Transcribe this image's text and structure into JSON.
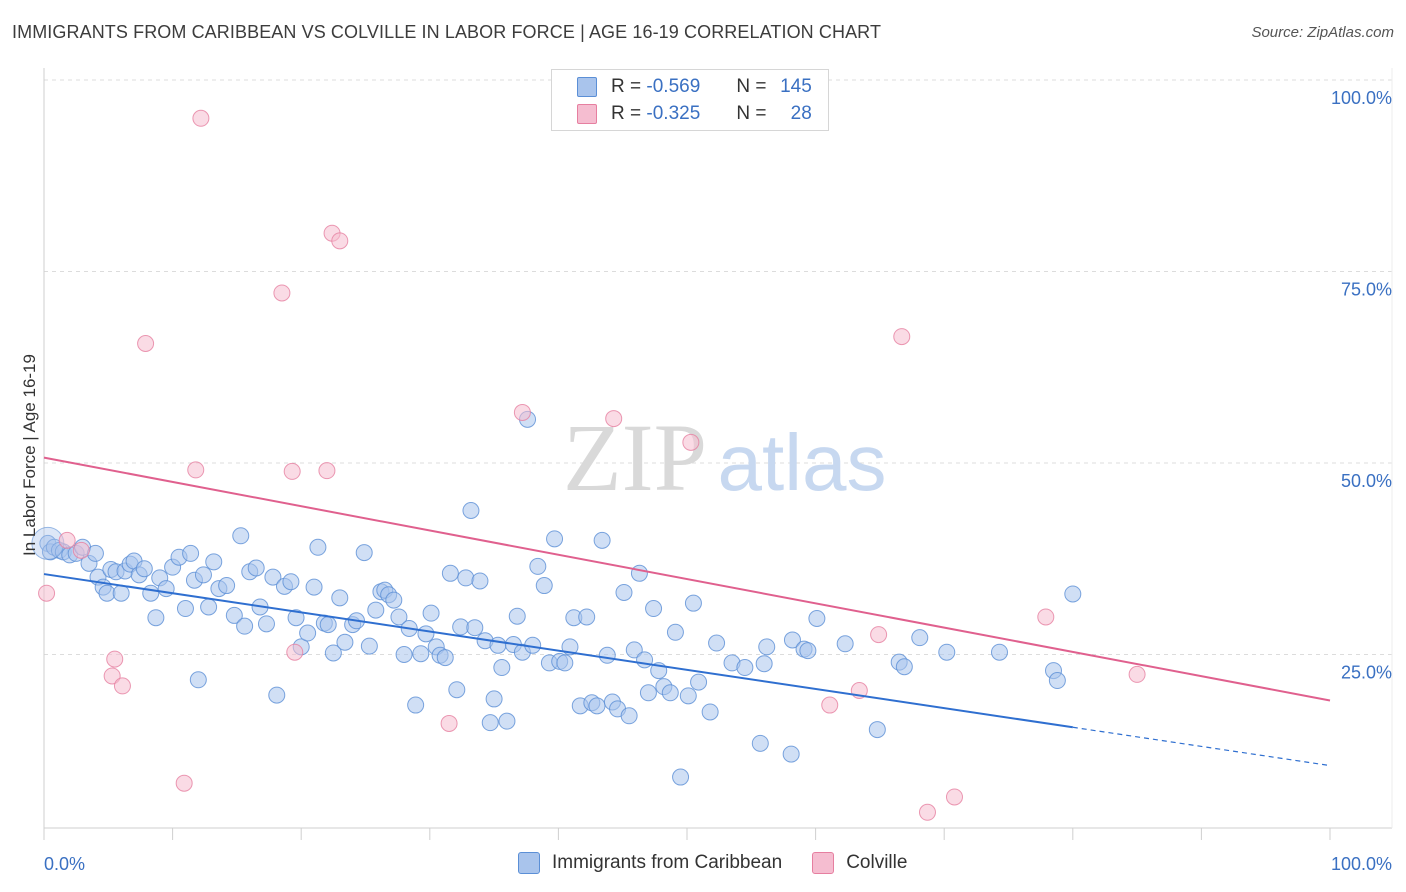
{
  "header": {
    "title": "IMMIGRANTS FROM CARIBBEAN VS COLVILLE IN LABOR FORCE | AGE 16-19 CORRELATION CHART",
    "source": "Source: ZipAtlas.com"
  },
  "legend": {
    "rows": [
      {
        "r_label": "R =",
        "r_value": "-0.569",
        "n_label": "N =",
        "n_value": "145"
      },
      {
        "r_label": "R =",
        "r_value": "-0.325",
        "n_label": "N =",
        "n_value": "28"
      }
    ]
  },
  "bottom_legend": {
    "series1": "Immigrants from Caribbean",
    "series2": "Colville"
  },
  "colors": {
    "blue_fill": "#a9c4ec",
    "blue_stroke": "#5b8fd6",
    "blue_line": "#2f6fd0",
    "pink_fill": "#f5bdd0",
    "pink_stroke": "#e67fa0",
    "pink_line": "#e0608e",
    "tick_text": "#3a70c2"
  },
  "chart_data": {
    "type": "scatter",
    "title": "IMMIGRANTS FROM CARIBBEAN VS COLVILLE IN LABOR FORCE | AGE 16-19 CORRELATION CHART",
    "xlabel": "",
    "ylabel": "In Labor Force | Age 16-19",
    "xlim": [
      0,
      100
    ],
    "ylim": [
      0,
      100
    ],
    "x_tick_labels": [
      "0.0%",
      "100.0%"
    ],
    "y_ticks": [
      25,
      50,
      75,
      100
    ],
    "y_tick_labels": [
      "25.0%",
      "50.0%",
      "75.0%",
      "100.0%"
    ],
    "watermark": {
      "zip": "ZIP",
      "atlas": "atlas"
    },
    "series": [
      {
        "name": "Immigrants from Caribbean",
        "R": -0.569,
        "N": 145,
        "trend": {
          "x0": 0,
          "y0": 35.5,
          "x1": 100,
          "y1": 10.5,
          "solid_until_x": 80
        },
        "points": [
          [
            0.3,
            39.5
          ],
          [
            0.5,
            38.4
          ],
          [
            0.8,
            39
          ],
          [
            1.2,
            38.6
          ],
          [
            1.5,
            38.4
          ],
          [
            2,
            38
          ],
          [
            2.5,
            38.2
          ],
          [
            3,
            39
          ],
          [
            3.5,
            36.9
          ],
          [
            4,
            38.2
          ],
          [
            4.2,
            35.1
          ],
          [
            4.6,
            33.8
          ],
          [
            4.9,
            33
          ],
          [
            5.2,
            36.1
          ],
          [
            5.6,
            35.8
          ],
          [
            6,
            33
          ],
          [
            6.3,
            35.9
          ],
          [
            6.7,
            36.8
          ],
          [
            7,
            37.2
          ],
          [
            7.4,
            35.4
          ],
          [
            7.8,
            36.2
          ],
          [
            8.3,
            33
          ],
          [
            8.7,
            29.8
          ],
          [
            9,
            35
          ],
          [
            9.5,
            33.6
          ],
          [
            10,
            36.4
          ],
          [
            10.5,
            37.7
          ],
          [
            11,
            31
          ],
          [
            11.4,
            38.2
          ],
          [
            11.7,
            34.7
          ],
          [
            12,
            21.7
          ],
          [
            12.4,
            35.4
          ],
          [
            12.8,
            31.2
          ],
          [
            13.2,
            37.1
          ],
          [
            13.6,
            33.6
          ],
          [
            14.2,
            34
          ],
          [
            14.8,
            30.1
          ],
          [
            15.3,
            40.5
          ],
          [
            15.6,
            28.7
          ],
          [
            16,
            35.8
          ],
          [
            16.5,
            36.3
          ],
          [
            16.8,
            31.2
          ],
          [
            17.3,
            29
          ],
          [
            17.8,
            35.1
          ],
          [
            18.1,
            19.7
          ],
          [
            18.7,
            33.9
          ],
          [
            19.2,
            34.5
          ],
          [
            19.6,
            29.8
          ],
          [
            20,
            26
          ],
          [
            20.5,
            27.8
          ],
          [
            21,
            33.8
          ],
          [
            21.3,
            39
          ],
          [
            21.8,
            29.1
          ],
          [
            22.1,
            28.9
          ],
          [
            22.5,
            25.2
          ],
          [
            23,
            32.4
          ],
          [
            23.4,
            26.6
          ],
          [
            24,
            28.9
          ],
          [
            24.3,
            29.4
          ],
          [
            24.9,
            38.3
          ],
          [
            25.3,
            26.1
          ],
          [
            25.8,
            30.8
          ],
          [
            26.2,
            33.2
          ],
          [
            26.5,
            33.4
          ],
          [
            26.8,
            32.8
          ],
          [
            27.2,
            32.1
          ],
          [
            27.6,
            29.9
          ],
          [
            28,
            25
          ],
          [
            28.4,
            28.4
          ],
          [
            28.9,
            18.4
          ],
          [
            29.3,
            25.1
          ],
          [
            29.7,
            27.7
          ],
          [
            30.1,
            30.4
          ],
          [
            30.5,
            26
          ],
          [
            30.8,
            24.9
          ],
          [
            31.2,
            24.6
          ],
          [
            31.6,
            35.6
          ],
          [
            32.1,
            20.4
          ],
          [
            32.4,
            28.6
          ],
          [
            32.8,
            35
          ],
          [
            33.2,
            43.8
          ],
          [
            33.5,
            28.5
          ],
          [
            33.9,
            34.6
          ],
          [
            34.3,
            26.8
          ],
          [
            34.7,
            16.1
          ],
          [
            35,
            19.2
          ],
          [
            35.3,
            26.2
          ],
          [
            35.6,
            23.3
          ],
          [
            36,
            16.3
          ],
          [
            36.5,
            26.3
          ],
          [
            36.8,
            30
          ],
          [
            37.2,
            25.3
          ],
          [
            37.6,
            55.7
          ],
          [
            38,
            26.2
          ],
          [
            38.4,
            36.5
          ],
          [
            38.9,
            34
          ],
          [
            39.3,
            23.9
          ],
          [
            39.7,
            40.1
          ],
          [
            40.1,
            24.1
          ],
          [
            40.5,
            23.9
          ],
          [
            40.9,
            26
          ],
          [
            41.2,
            29.8
          ],
          [
            41.7,
            18.3
          ],
          [
            42.2,
            29.9
          ],
          [
            42.6,
            18.7
          ],
          [
            43,
            18.3
          ],
          [
            43.4,
            39.9
          ],
          [
            43.8,
            24.9
          ],
          [
            44.2,
            18.8
          ],
          [
            44.6,
            17.9
          ],
          [
            45.1,
            33.1
          ],
          [
            45.5,
            17
          ],
          [
            45.9,
            25.6
          ],
          [
            46.3,
            35.6
          ],
          [
            46.7,
            24.3
          ],
          [
            47,
            20
          ],
          [
            47.4,
            31
          ],
          [
            47.8,
            22.9
          ],
          [
            48.2,
            20.8
          ],
          [
            48.7,
            20
          ],
          [
            49.1,
            27.9
          ],
          [
            49.5,
            9
          ],
          [
            50.1,
            19.6
          ],
          [
            50.5,
            31.7
          ],
          [
            50.9,
            21.4
          ],
          [
            51.8,
            17.5
          ],
          [
            52.3,
            26.5
          ],
          [
            53.5,
            23.9
          ],
          [
            54.5,
            23.3
          ],
          [
            55.7,
            13.4
          ],
          [
            56,
            23.8
          ],
          [
            56.2,
            26
          ],
          [
            58.1,
            12
          ],
          [
            58.2,
            26.9
          ],
          [
            59.1,
            25.7
          ],
          [
            59.4,
            25.5
          ],
          [
            60.1,
            29.7
          ],
          [
            62.3,
            26.4
          ],
          [
            64.8,
            15.2
          ],
          [
            66.5,
            24
          ],
          [
            66.9,
            23.4
          ],
          [
            68.1,
            27.2
          ],
          [
            70.2,
            25.3
          ],
          [
            74.3,
            25.3
          ],
          [
            78.5,
            22.9
          ],
          [
            78.8,
            21.6
          ],
          [
            80,
            32.9
          ]
        ]
      },
      {
        "name": "Colville",
        "R": -0.325,
        "N": 28,
        "trend": {
          "x0": 0,
          "y0": 50.7,
          "x1": 100,
          "y1": 19
        },
        "points": [
          [
            0.2,
            33
          ],
          [
            1.8,
            39.9
          ],
          [
            2.9,
            38.6
          ],
          [
            5.5,
            24.4
          ],
          [
            5.3,
            22.2
          ],
          [
            6.1,
            20.9
          ],
          [
            7.9,
            65.6
          ],
          [
            10.9,
            8.2
          ],
          [
            11.8,
            49.1
          ],
          [
            12.2,
            95
          ],
          [
            18.5,
            72.2
          ],
          [
            19.3,
            48.9
          ],
          [
            19.5,
            25.3
          ],
          [
            22,
            49
          ],
          [
            22.4,
            80
          ],
          [
            23,
            79
          ],
          [
            31.5,
            16
          ],
          [
            37.2,
            56.6
          ],
          [
            44.3,
            55.8
          ],
          [
            50.3,
            52.7
          ],
          [
            61.1,
            18.4
          ],
          [
            63.4,
            20.3
          ],
          [
            64.9,
            27.6
          ],
          [
            66.7,
            66.5
          ],
          [
            68.7,
            4.4
          ],
          [
            70.8,
            6.4
          ],
          [
            77.9,
            29.9
          ],
          [
            85,
            22.4
          ]
        ]
      }
    ]
  }
}
